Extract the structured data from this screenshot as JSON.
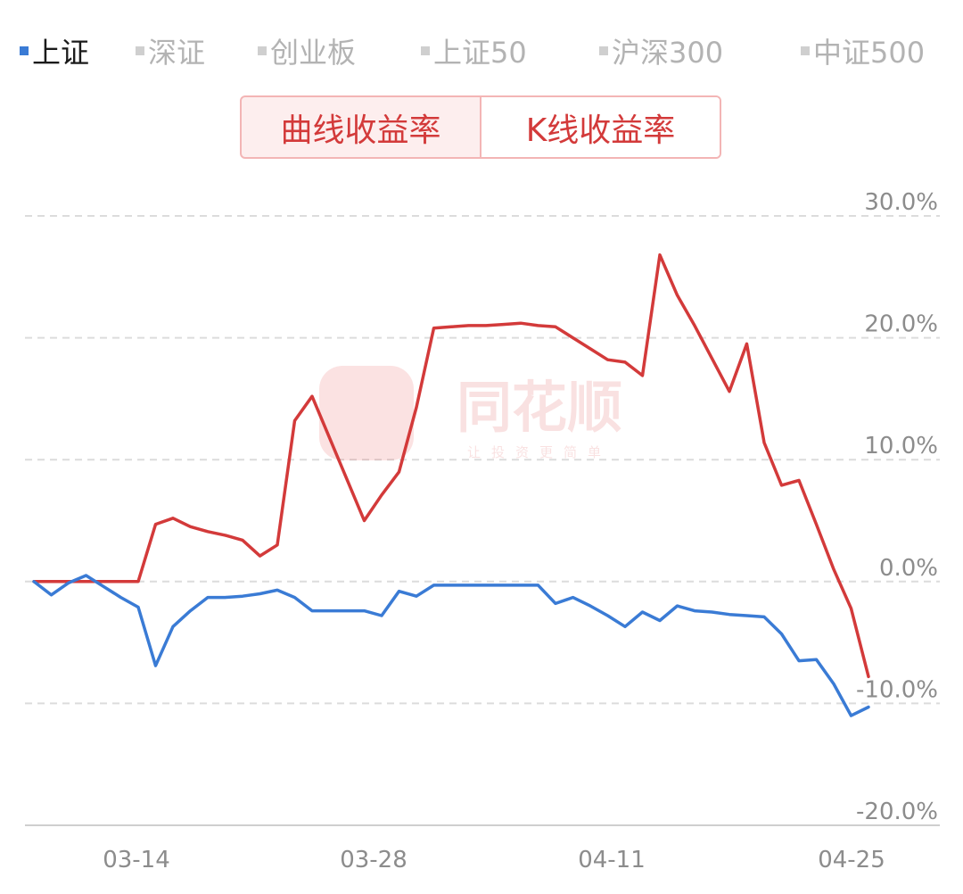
{
  "legend": [
    {
      "label": "上证",
      "active": true,
      "color": "#3a7bd5"
    },
    {
      "label": "深证",
      "active": false
    },
    {
      "label": "创业板",
      "active": false
    },
    {
      "label": "上证50",
      "active": false
    },
    {
      "label": "沪深300",
      "active": false
    },
    {
      "label": "中证500",
      "active": false
    }
  ],
  "toggle": {
    "curve_label": "曲线收益率",
    "kline_label": "K线收益率"
  },
  "watermark": {
    "brand": "同花顺",
    "slogan": "让投资更简单"
  },
  "chart_data": {
    "type": "line",
    "xlabel": "",
    "ylabel": "",
    "x_ticks": [
      "03-14",
      "03-28",
      "04-11",
      "04-25"
    ],
    "y_ticks": [
      "30.0%",
      "20.0%",
      "10.0%",
      "0.0%",
      "-10.0%",
      "-20.0%"
    ],
    "ylim": [
      -20,
      30
    ],
    "grid": true,
    "series": [
      {
        "name": "",
        "color": "#d33a3a",
        "values": [
          0,
          0,
          0,
          0,
          0,
          0,
          0,
          4.7,
          5.2,
          4.5,
          4.1,
          3.8,
          3.4,
          2.1,
          3.0,
          13.2,
          15.2,
          11.8,
          8.4,
          5.0,
          7.1,
          9.0,
          14.3,
          20.8,
          20.9,
          21.0,
          21.0,
          21.1,
          21.2,
          21.0,
          20.9,
          20.0,
          19.1,
          18.2,
          18.0,
          16.9,
          26.8,
          23.5,
          21.0,
          18.3,
          15.6,
          19.5,
          11.4,
          7.9,
          8.3,
          4.7,
          1.0,
          -2.2,
          -7.8
        ]
      },
      {
        "name": "上证",
        "color": "#3a7bd5",
        "values": [
          0,
          -1.1,
          -0.1,
          0.5,
          -0.4,
          -1.3,
          -2.1,
          -6.9,
          -3.7,
          -2.4,
          -1.3,
          -1.3,
          -1.2,
          -1.0,
          -0.7,
          -1.3,
          -2.4,
          -2.4,
          -2.4,
          -2.4,
          -2.8,
          -0.8,
          -1.2,
          -0.3,
          -0.3,
          -0.3,
          -0.3,
          -0.3,
          -0.3,
          -0.3,
          -1.8,
          -1.3,
          -2.0,
          -2.8,
          -3.7,
          -2.5,
          -3.2,
          -2.0,
          -2.4,
          -2.5,
          -2.7,
          -2.8,
          -2.9,
          -4.3,
          -6.5,
          -6.4,
          -8.4,
          -11.0,
          -10.3
        ]
      }
    ]
  }
}
